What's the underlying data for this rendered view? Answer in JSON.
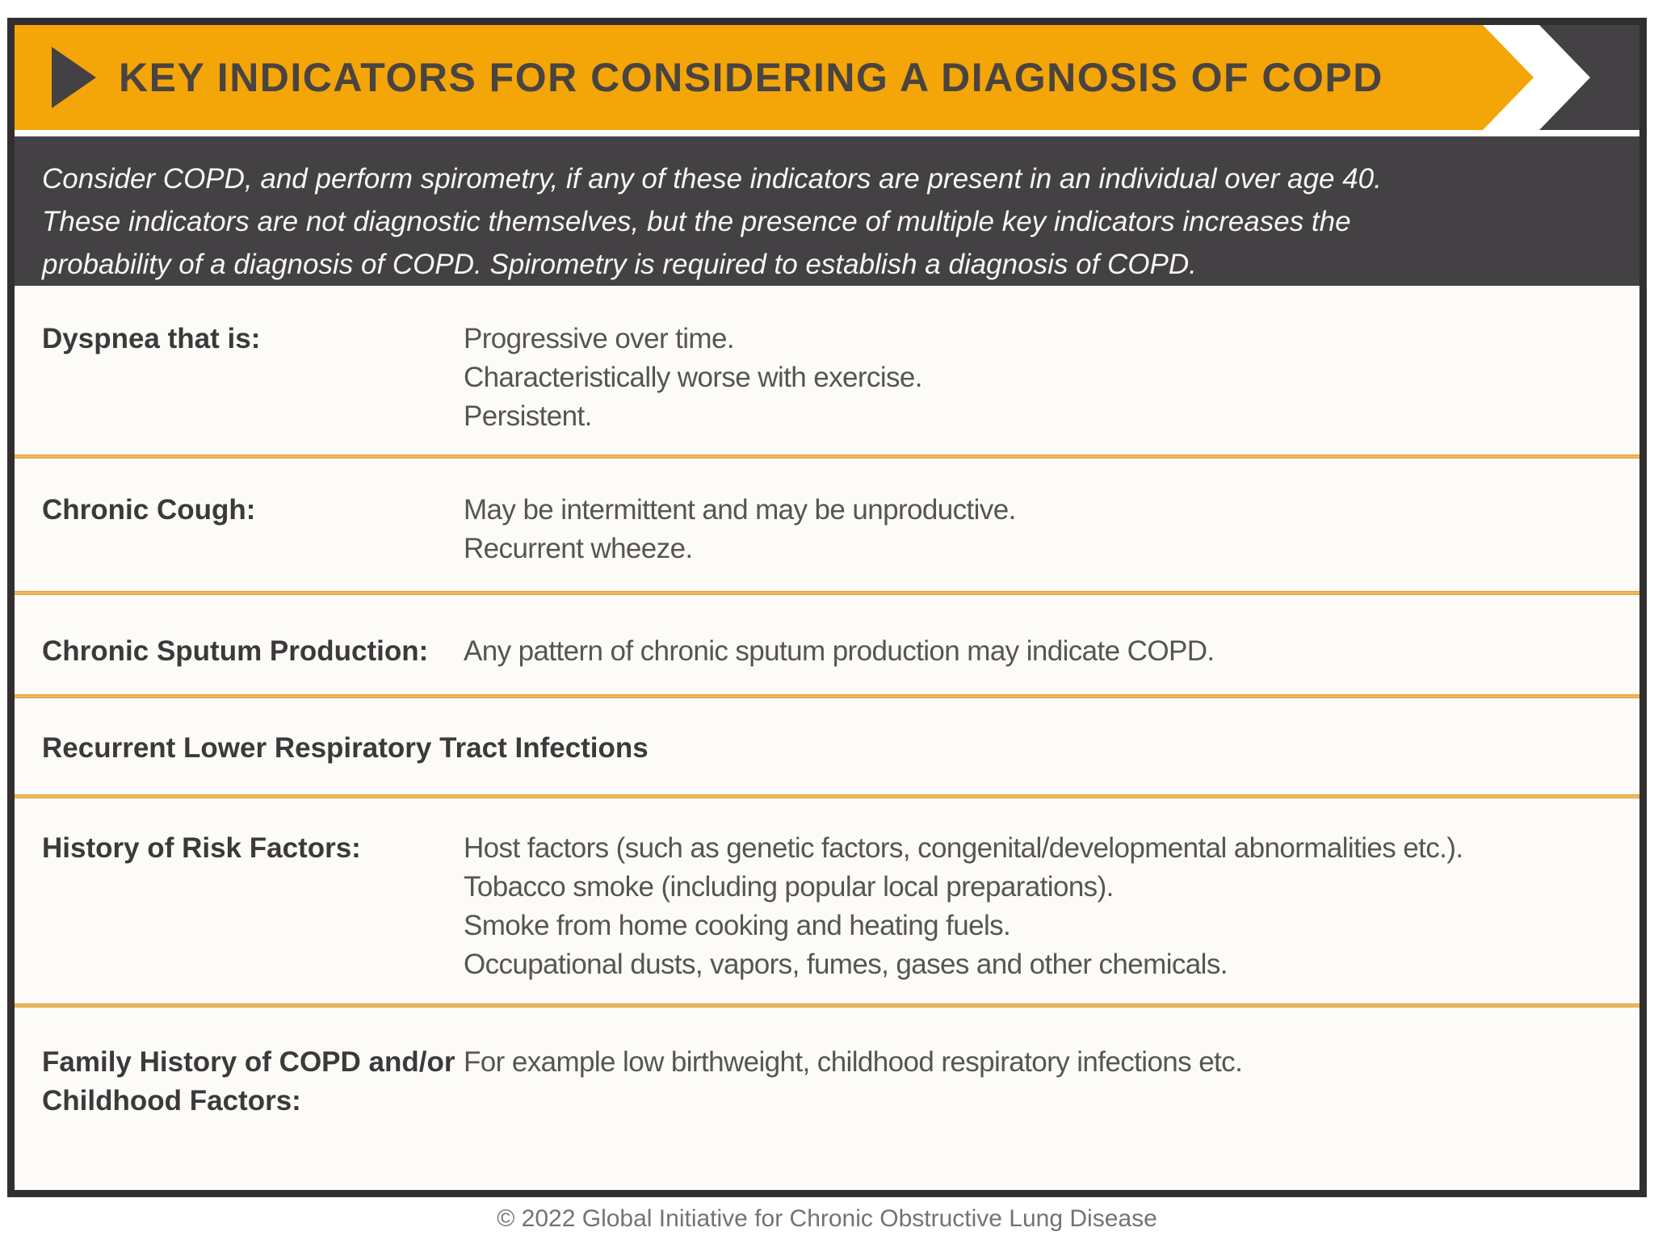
{
  "header": {
    "title": "KEY INDICATORS FOR CONSIDERING A DIAGNOSIS OF COPD"
  },
  "intro": {
    "lines": [
      "Consider COPD, and perform spirometry, if any of these indicators are present in an individual over age 40.",
      "These indicators are not diagnostic themselves, but the presence of multiple key indicators increases the",
      "probability of a diagnosis of COPD. Spirometry is required to establish a diagnosis of COPD."
    ]
  },
  "table": {
    "rows": [
      {
        "label": "Dyspnea that is:",
        "items": [
          "Progressive over time.",
          "Characteristically worse with exercise.",
          "Persistent."
        ]
      },
      {
        "label": "Chronic Cough:",
        "items": [
          "May be intermittent and may be unproductive.",
          "Recurrent wheeze."
        ]
      },
      {
        "label": "Chronic Sputum Production:",
        "items": [
          "Any pattern of chronic sputum production may indicate COPD."
        ]
      },
      {
        "label": "Recurrent Lower Respiratory Tract Infections",
        "items": []
      },
      {
        "label": "History of Risk Factors:",
        "items": [
          "Host factors (such as genetic factors, congenital/developmental abnormalities etc.).",
          "Tobacco smoke (including popular local preparations).",
          "Smoke from home cooking and heating fuels.",
          "Occupational dusts, vapors, fumes, gases and other chemicals."
        ]
      },
      {
        "label": "Family History of COPD and/or Childhood Factors:",
        "items": [
          "For example low birthweight, childhood respiratory infections etc."
        ]
      }
    ]
  },
  "footer": {
    "copyright": "© 2022 Global Initiative for Chronic Obstructive Lung Disease"
  },
  "colors": {
    "banner_yellow": "#F4A508",
    "dark_gray": "#434144",
    "divider_gold": "#ECA943",
    "frame_border": "#312F30"
  },
  "icons": {
    "left": "play-arrow-icon",
    "right": "chevron-right-icon"
  }
}
